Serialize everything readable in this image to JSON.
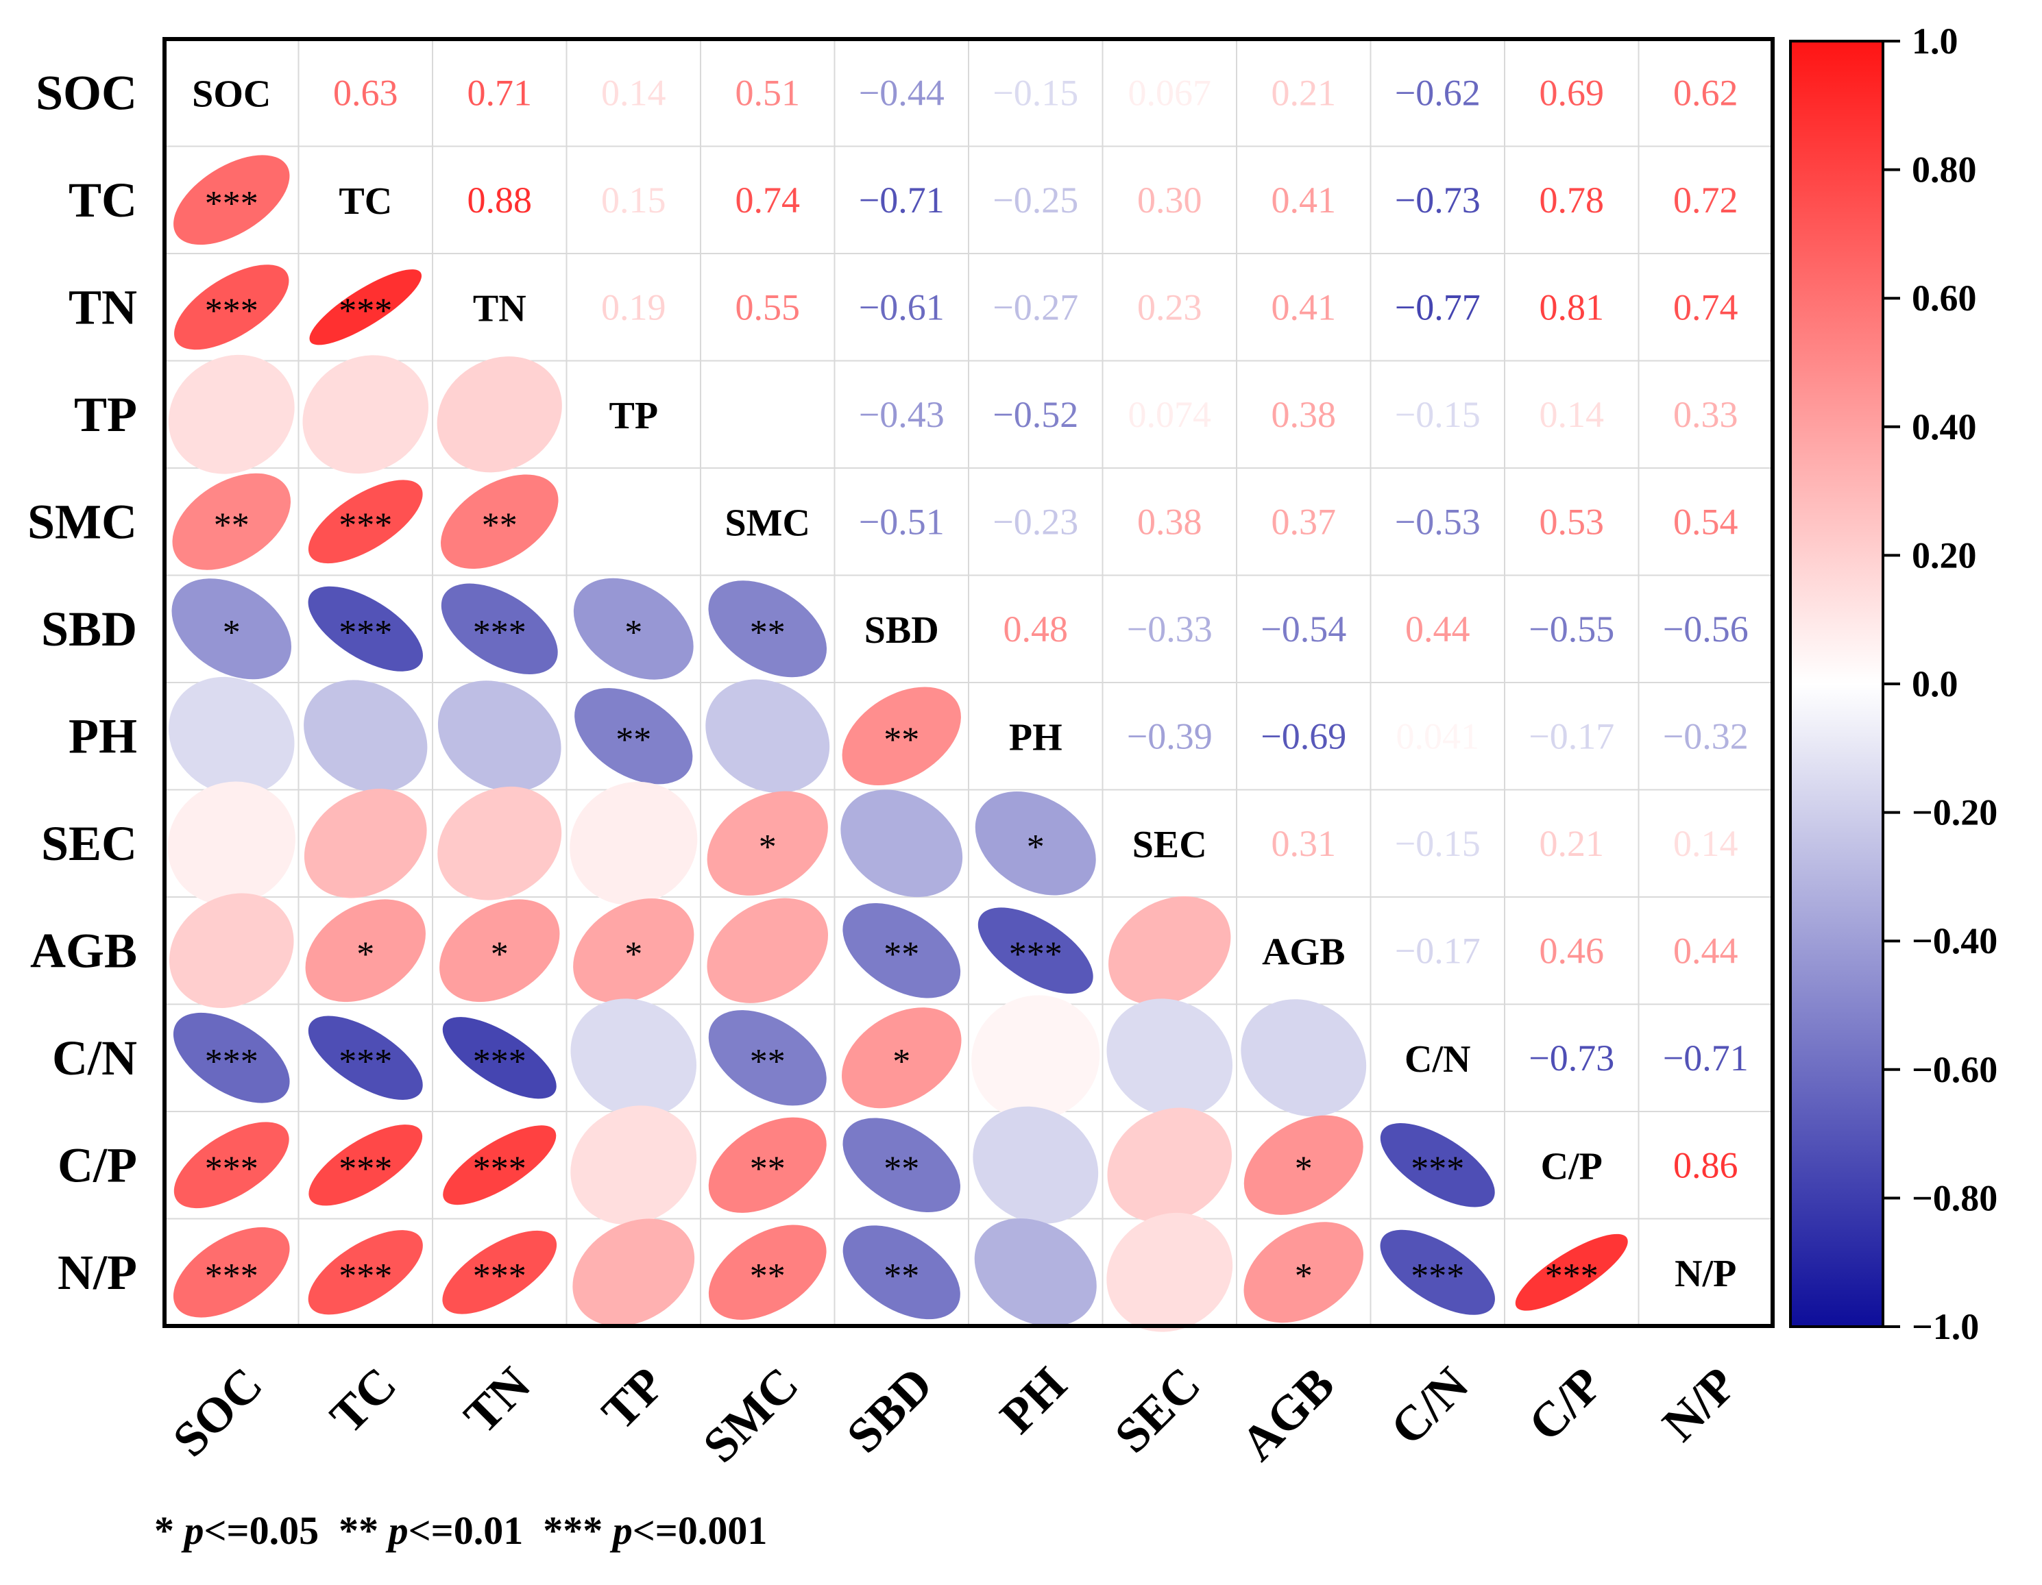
{
  "chart_data": {
    "type": "heatmap",
    "subtype": "correlation-matrix",
    "variables": [
      "SOC",
      "TC",
      "TN",
      "TP",
      "SMC",
      "SBD",
      "PH",
      "SEC",
      "AGB",
      "C/N",
      "C/P",
      "N/P"
    ],
    "upper_labels": [
      [
        "",
        "0.63",
        "0.71",
        "0.14",
        "0.51",
        "−0.44",
        "−0.15",
        "0.067",
        "0.21",
        "−0.62",
        "0.69",
        "0.62"
      ],
      [
        "",
        "",
        "0.88",
        "0.15",
        "0.74",
        "−0.71",
        "−0.25",
        "0.30",
        "0.41",
        "−0.73",
        "0.78",
        "0.72"
      ],
      [
        "",
        "",
        "",
        "0.19",
        "0.55",
        "−0.61",
        "−0.27",
        "0.23",
        "0.41",
        "−0.77",
        "0.81",
        "0.74"
      ],
      [
        "",
        "",
        "",
        "",
        "",
        "−0.43",
        "−0.52",
        "0.074",
        "0.38",
        "−0.15",
        "0.14",
        "0.33"
      ],
      [
        "",
        "",
        "",
        "",
        "",
        "−0.51",
        "−0.23",
        "0.38",
        "0.37",
        "−0.53",
        "0.53",
        "0.54"
      ],
      [
        "",
        "",
        "",
        "",
        "",
        "",
        "0.48",
        "−0.33",
        "−0.54",
        "0.44",
        "−0.55",
        "−0.56"
      ],
      [
        "",
        "",
        "",
        "",
        "",
        "",
        "",
        "−0.39",
        "−0.69",
        "0.041",
        "−0.17",
        "−0.32"
      ],
      [
        "",
        "",
        "",
        "",
        "",
        "",
        "",
        "",
        "0.31",
        "−0.15",
        "0.21",
        "0.14"
      ],
      [
        "",
        "",
        "",
        "",
        "",
        "",
        "",
        "",
        "",
        "−0.17",
        "0.46",
        "0.44"
      ],
      [
        "",
        "",
        "",
        "",
        "",
        "",
        "",
        "",
        "",
        "",
        "−0.73",
        "−0.71"
      ],
      [
        "",
        "",
        "",
        "",
        "",
        "",
        "",
        "",
        "",
        "",
        "",
        "0.86"
      ],
      [
        "",
        "",
        "",
        "",
        "",
        "",
        "",
        "",
        "",
        "",
        "",
        ""
      ]
    ],
    "matrix": [
      [
        1,
        0.63,
        0.71,
        0.14,
        0.51,
        -0.44,
        -0.15,
        0.067,
        0.21,
        -0.62,
        0.69,
        0.62
      ],
      [
        0.63,
        1,
        0.88,
        0.15,
        0.74,
        -0.71,
        -0.25,
        0.3,
        0.41,
        -0.73,
        0.78,
        0.72
      ],
      [
        0.71,
        0.88,
        1,
        0.19,
        0.55,
        -0.61,
        -0.27,
        0.23,
        0.41,
        -0.77,
        0.81,
        0.74
      ],
      [
        0.14,
        0.15,
        0.19,
        1,
        null,
        -0.43,
        -0.52,
        0.074,
        0.38,
        -0.15,
        0.14,
        0.33
      ],
      [
        0.51,
        0.74,
        0.55,
        null,
        1,
        -0.51,
        -0.23,
        0.38,
        0.37,
        -0.53,
        0.53,
        0.54
      ],
      [
        -0.44,
        -0.71,
        -0.61,
        -0.43,
        -0.51,
        1,
        0.48,
        -0.33,
        -0.54,
        0.44,
        -0.55,
        -0.56
      ],
      [
        -0.15,
        -0.25,
        -0.27,
        -0.52,
        -0.23,
        0.48,
        1,
        -0.39,
        -0.69,
        0.041,
        -0.17,
        -0.32
      ],
      [
        0.067,
        0.3,
        0.23,
        0.074,
        0.38,
        -0.33,
        -0.39,
        1,
        0.31,
        -0.15,
        0.21,
        0.14
      ],
      [
        0.21,
        0.41,
        0.41,
        0.38,
        0.37,
        -0.54,
        -0.69,
        0.31,
        1,
        -0.17,
        0.46,
        0.44
      ],
      [
        -0.62,
        -0.73,
        -0.77,
        -0.15,
        -0.53,
        0.44,
        0.041,
        -0.15,
        -0.17,
        1,
        -0.73,
        -0.71
      ],
      [
        0.69,
        0.78,
        0.81,
        0.14,
        0.53,
        -0.55,
        -0.17,
        0.21,
        0.46,
        -0.73,
        1,
        0.86
      ],
      [
        0.62,
        0.72,
        0.74,
        0.33,
        0.54,
        -0.56,
        -0.32,
        0.14,
        0.44,
        -0.71,
        0.86,
        1
      ]
    ],
    "significance": [
      [
        "",
        "",
        "",
        "",
        "",
        "",
        "",
        "",
        "",
        "",
        "",
        ""
      ],
      [
        "***",
        "",
        "",
        "",
        "",
        "",
        "",
        "",
        "",
        "",
        "",
        ""
      ],
      [
        "***",
        "***",
        "",
        "",
        "",
        "",
        "",
        "",
        "",
        "",
        "",
        ""
      ],
      [
        "",
        "",
        "",
        "",
        "",
        "",
        "",
        "",
        "",
        "",
        "",
        ""
      ],
      [
        "**",
        "***",
        "**",
        "",
        "",
        "",
        "",
        "",
        "",
        "",
        "",
        ""
      ],
      [
        "*",
        "***",
        "***",
        "*",
        "**",
        "",
        "",
        "",
        "",
        "",
        "",
        ""
      ],
      [
        "",
        "",
        "",
        "**",
        "",
        "**",
        "",
        "",
        "",
        "",
        "",
        ""
      ],
      [
        "",
        "",
        "",
        "",
        "*",
        "",
        "*",
        "",
        "",
        "",
        "",
        ""
      ],
      [
        "",
        "*",
        "*",
        "*",
        "",
        "**",
        "***",
        "",
        "",
        "",
        "",
        ""
      ],
      [
        "***",
        "***",
        "***",
        "",
        "**",
        "*",
        "",
        "",
        "",
        "",
        "",
        ""
      ],
      [
        "***",
        "***",
        "***",
        "",
        "**",
        "**",
        "",
        "",
        "*",
        "***",
        "",
        ""
      ],
      [
        "***",
        "***",
        "***",
        "",
        "**",
        "**",
        "",
        "",
        "*",
        "***",
        "***",
        ""
      ]
    ],
    "colorbar": {
      "range": [
        -1.0,
        1.0
      ],
      "ticks": [
        1.0,
        0.8,
        0.6,
        0.4,
        0.2,
        0.0,
        -0.2,
        -0.4,
        -0.6,
        -0.8,
        -1.0
      ],
      "tick_labels": [
        "1.0",
        "0.80",
        "0.60",
        "0.40",
        "0.20",
        "0.0",
        "−0.20",
        "−0.40",
        "−0.60",
        "−0.80",
        "−1.0"
      ],
      "colors": {
        "negative": "#0d0d9a",
        "zero": "#ffffff",
        "positive": "#ff1414"
      }
    },
    "legend": {
      "star1": "*",
      "star1_p": "p",
      "star1_text": "<=0.05",
      "star2": "**",
      "star2_p": "p",
      "star2_text": "<=0.01",
      "star3": "***",
      "star3_p": "p",
      "star3_text": "<=0.001"
    }
  }
}
